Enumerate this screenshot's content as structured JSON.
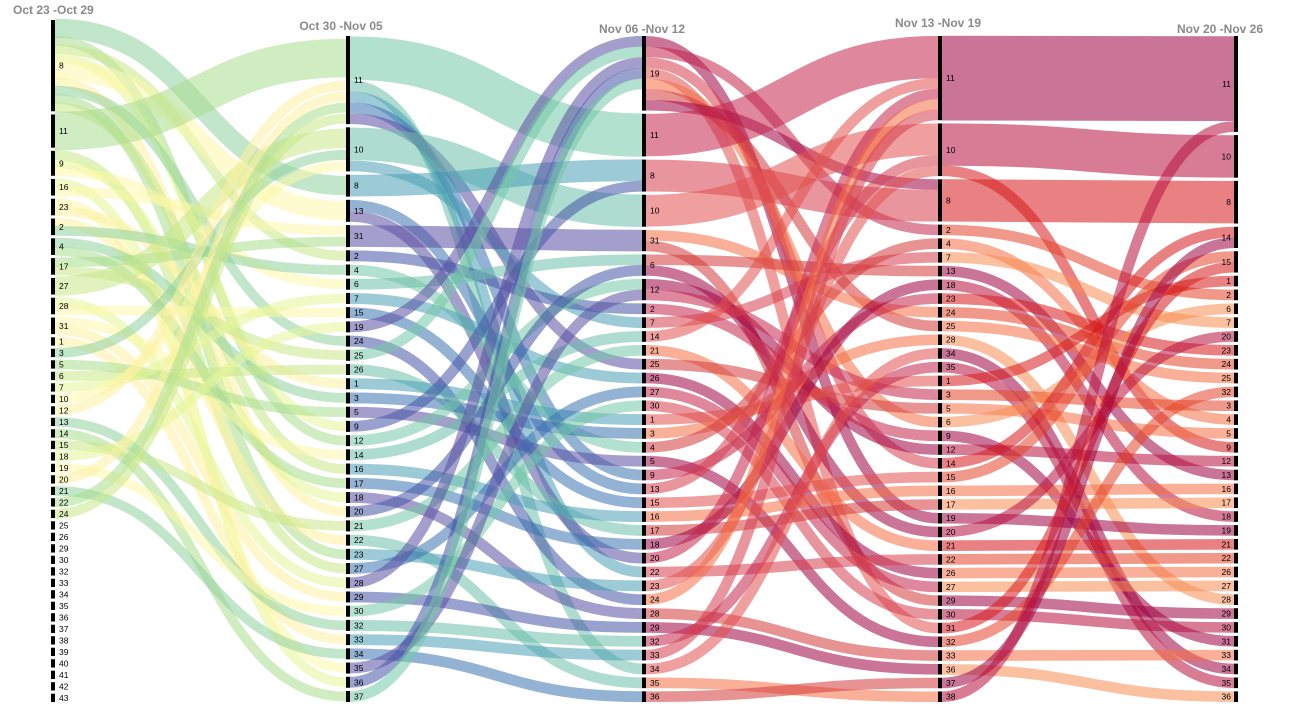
{
  "chart_data": {
    "type": "sankey",
    "title": "",
    "columns": [
      {
        "label": "Oct 23 -Oct 29",
        "nodes": [
          {
            "id": "8",
            "w": 11
          },
          {
            "id": "11",
            "w": 4
          },
          {
            "id": "9",
            "w": 3
          },
          {
            "id": "16",
            "w": 2
          },
          {
            "id": "23",
            "w": 2
          },
          {
            "id": "2",
            "w": 2
          },
          {
            "id": "4",
            "w": 2
          },
          {
            "id": "17",
            "w": 2
          },
          {
            "id": "27",
            "w": 2
          },
          {
            "id": "28",
            "w": 2
          },
          {
            "id": "31",
            "w": 2
          },
          {
            "id": "1",
            "w": 1
          },
          {
            "id": "3",
            "w": 1
          },
          {
            "id": "5",
            "w": 1
          },
          {
            "id": "6",
            "w": 1
          },
          {
            "id": "7",
            "w": 1
          },
          {
            "id": "10",
            "w": 1
          },
          {
            "id": "12",
            "w": 1
          },
          {
            "id": "13",
            "w": 1
          },
          {
            "id": "14",
            "w": 1
          },
          {
            "id": "15",
            "w": 1
          },
          {
            "id": "18",
            "w": 1
          },
          {
            "id": "19",
            "w": 1
          },
          {
            "id": "20",
            "w": 1
          },
          {
            "id": "21",
            "w": 1
          },
          {
            "id": "22",
            "w": 1
          },
          {
            "id": "24",
            "w": 1
          },
          {
            "id": "25",
            "w": 1
          },
          {
            "id": "26",
            "w": 1
          },
          {
            "id": "29",
            "w": 1
          },
          {
            "id": "30",
            "w": 1
          },
          {
            "id": "32",
            "w": 1
          },
          {
            "id": "33",
            "w": 1
          },
          {
            "id": "34",
            "w": 1
          },
          {
            "id": "35",
            "w": 1
          },
          {
            "id": "36",
            "w": 1
          },
          {
            "id": "37",
            "w": 1
          },
          {
            "id": "38",
            "w": 1
          },
          {
            "id": "39",
            "w": 1
          },
          {
            "id": "40",
            "w": 1
          },
          {
            "id": "41",
            "w": 1
          },
          {
            "id": "42",
            "w": 1
          },
          {
            "id": "43",
            "w": 1
          }
        ]
      },
      {
        "label": "Oct 30 -Nov 05",
        "nodes": [
          {
            "id": "11",
            "w": 8
          },
          {
            "id": "10",
            "w": 4
          },
          {
            "id": "8",
            "w": 2
          },
          {
            "id": "13",
            "w": 2
          },
          {
            "id": "31",
            "w": 2
          },
          {
            "id": "2",
            "w": 1
          },
          {
            "id": "4",
            "w": 1
          },
          {
            "id": "6",
            "w": 1
          },
          {
            "id": "7",
            "w": 1
          },
          {
            "id": "15",
            "w": 1
          },
          {
            "id": "19",
            "w": 1
          },
          {
            "id": "24",
            "w": 1
          },
          {
            "id": "25",
            "w": 1
          },
          {
            "id": "26",
            "w": 1
          },
          {
            "id": "1",
            "w": 1
          },
          {
            "id": "3",
            "w": 1
          },
          {
            "id": "5",
            "w": 1
          },
          {
            "id": "9",
            "w": 1
          },
          {
            "id": "12",
            "w": 1
          },
          {
            "id": "14",
            "w": 1
          },
          {
            "id": "16",
            "w": 1
          },
          {
            "id": "17",
            "w": 1
          },
          {
            "id": "18",
            "w": 1
          },
          {
            "id": "20",
            "w": 1
          },
          {
            "id": "21",
            "w": 1
          },
          {
            "id": "22",
            "w": 1
          },
          {
            "id": "23",
            "w": 1
          },
          {
            "id": "27",
            "w": 1
          },
          {
            "id": "28",
            "w": 1
          },
          {
            "id": "29",
            "w": 1
          },
          {
            "id": "30",
            "w": 1
          },
          {
            "id": "32",
            "w": 1
          },
          {
            "id": "33",
            "w": 1
          },
          {
            "id": "34",
            "w": 1
          },
          {
            "id": "35",
            "w": 1
          },
          {
            "id": "36",
            "w": 1
          },
          {
            "id": "37",
            "w": 1
          }
        ]
      },
      {
        "label": "Nov 06 -Nov 12",
        "nodes": [
          {
            "id": "19",
            "w": 7
          },
          {
            "id": "11",
            "w": 4
          },
          {
            "id": "8",
            "w": 3
          },
          {
            "id": "10",
            "w": 3
          },
          {
            "id": "31",
            "w": 2
          },
          {
            "id": "6",
            "w": 2
          },
          {
            "id": "12",
            "w": 2
          },
          {
            "id": "2",
            "w": 1
          },
          {
            "id": "7",
            "w": 1
          },
          {
            "id": "14",
            "w": 1
          },
          {
            "id": "21",
            "w": 1
          },
          {
            "id": "25",
            "w": 1
          },
          {
            "id": "26",
            "w": 1
          },
          {
            "id": "27",
            "w": 1
          },
          {
            "id": "30",
            "w": 1
          },
          {
            "id": "1",
            "w": 1
          },
          {
            "id": "3",
            "w": 1
          },
          {
            "id": "4",
            "w": 1
          },
          {
            "id": "5",
            "w": 1
          },
          {
            "id": "9",
            "w": 1
          },
          {
            "id": "13",
            "w": 1
          },
          {
            "id": "15",
            "w": 1
          },
          {
            "id": "16",
            "w": 1
          },
          {
            "id": "17",
            "w": 1
          },
          {
            "id": "18",
            "w": 1
          },
          {
            "id": "20",
            "w": 1
          },
          {
            "id": "22",
            "w": 1
          },
          {
            "id": "23",
            "w": 1
          },
          {
            "id": "24",
            "w": 1
          },
          {
            "id": "28",
            "w": 1
          },
          {
            "id": "29",
            "w": 1
          },
          {
            "id": "32",
            "w": 1
          },
          {
            "id": "33",
            "w": 1
          },
          {
            "id": "34",
            "w": 1
          },
          {
            "id": "35",
            "w": 1
          },
          {
            "id": "36",
            "w": 1
          }
        ]
      },
      {
        "label": "Nov 13 -Nov 19",
        "nodes": [
          {
            "id": "11",
            "w": 8
          },
          {
            "id": "10",
            "w": 5
          },
          {
            "id": "8",
            "w": 4
          },
          {
            "id": "2",
            "w": 1
          },
          {
            "id": "4",
            "w": 1
          },
          {
            "id": "7",
            "w": 1
          },
          {
            "id": "13",
            "w": 1
          },
          {
            "id": "18",
            "w": 1
          },
          {
            "id": "23",
            "w": 1
          },
          {
            "id": "24",
            "w": 1
          },
          {
            "id": "25",
            "w": 1
          },
          {
            "id": "28",
            "w": 1
          },
          {
            "id": "34",
            "w": 1
          },
          {
            "id": "35",
            "w": 1
          },
          {
            "id": "1",
            "w": 1
          },
          {
            "id": "3",
            "w": 1
          },
          {
            "id": "5",
            "w": 1
          },
          {
            "id": "6",
            "w": 1
          },
          {
            "id": "9",
            "w": 1
          },
          {
            "id": "12",
            "w": 1
          },
          {
            "id": "14",
            "w": 1
          },
          {
            "id": "15",
            "w": 1
          },
          {
            "id": "16",
            "w": 1
          },
          {
            "id": "17",
            "w": 1
          },
          {
            "id": "19",
            "w": 1
          },
          {
            "id": "20",
            "w": 1
          },
          {
            "id": "21",
            "w": 1
          },
          {
            "id": "22",
            "w": 1
          },
          {
            "id": "26",
            "w": 1
          },
          {
            "id": "27",
            "w": 1
          },
          {
            "id": "29",
            "w": 1
          },
          {
            "id": "30",
            "w": 1
          },
          {
            "id": "31",
            "w": 1
          },
          {
            "id": "32",
            "w": 1
          },
          {
            "id": "33",
            "w": 1
          },
          {
            "id": "36",
            "w": 1
          },
          {
            "id": "37",
            "w": 1
          },
          {
            "id": "38",
            "w": 1
          }
        ]
      },
      {
        "label": "Nov 20 -Nov 26",
        "nodes": [
          {
            "id": "11",
            "w": 9
          },
          {
            "id": "10",
            "w": 4
          },
          {
            "id": "8",
            "w": 4
          },
          {
            "id": "14",
            "w": 2
          },
          {
            "id": "15",
            "w": 2
          },
          {
            "id": "1",
            "w": 1
          },
          {
            "id": "2",
            "w": 1
          },
          {
            "id": "6",
            "w": 1
          },
          {
            "id": "7",
            "w": 1
          },
          {
            "id": "20",
            "w": 1
          },
          {
            "id": "23",
            "w": 1
          },
          {
            "id": "24",
            "w": 1
          },
          {
            "id": "25",
            "w": 1
          },
          {
            "id": "32",
            "w": 1
          },
          {
            "id": "3",
            "w": 1
          },
          {
            "id": "4",
            "w": 1
          },
          {
            "id": "5",
            "w": 1
          },
          {
            "id": "9",
            "w": 1
          },
          {
            "id": "12",
            "w": 1
          },
          {
            "id": "13",
            "w": 1
          },
          {
            "id": "16",
            "w": 1
          },
          {
            "id": "17",
            "w": 1
          },
          {
            "id": "18",
            "w": 1
          },
          {
            "id": "19",
            "w": 1
          },
          {
            "id": "21",
            "w": 1
          },
          {
            "id": "22",
            "w": 1
          },
          {
            "id": "26",
            "w": 1
          },
          {
            "id": "27",
            "w": 1
          },
          {
            "id": "28",
            "w": 1
          },
          {
            "id": "29",
            "w": 1
          },
          {
            "id": "30",
            "w": 1
          },
          {
            "id": "31",
            "w": 1
          },
          {
            "id": "33",
            "w": 1
          },
          {
            "id": "34",
            "w": 1
          },
          {
            "id": "35",
            "w": 1
          },
          {
            "id": "36",
            "w": 1
          }
        ]
      }
    ],
    "palettes": [
      [
        "#8fd19e",
        "#a9dc8e",
        "#c8e88a",
        "#e6f598",
        "#fbf8a8",
        "#fdf0a0"
      ],
      [
        "#74c8a8",
        "#6bbfa9",
        "#4a9fb5",
        "#3b72b0",
        "#5a4fa3",
        "#4656a6"
      ],
      [
        "#9e0142",
        "#c2254d",
        "#d53e4f",
        "#e2504c",
        "#f46d43",
        "#d33b3b"
      ],
      [
        "#9e0142",
        "#b8103f",
        "#d7191c",
        "#e4452a",
        "#f46d43",
        "#f88d52"
      ],
      [
        "#f88d52",
        "#f46d43",
        "#fdae61",
        "#fee08b",
        "#feea9c",
        "#ff8c3a"
      ]
    ],
    "link_opacity": 0.55
  }
}
